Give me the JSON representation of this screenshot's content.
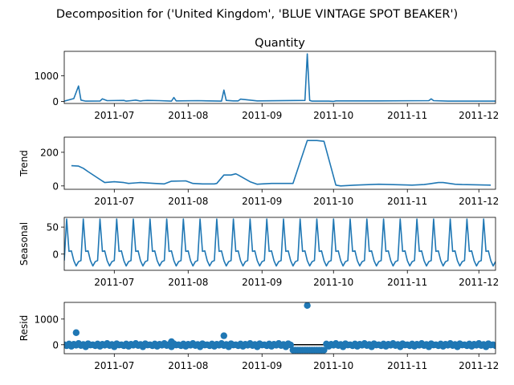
{
  "figure": {
    "suptitle": "Decomposition for ('United Kingdom', 'BLUE VINTAGE SPOT BEAKER')",
    "line_color": "#1f77b4"
  },
  "chart_data": [
    {
      "type": "line",
      "title": "Quantity",
      "ylabel": "",
      "ylim": [
        -80,
        1950
      ],
      "yticks": [
        0,
        1000
      ],
      "x_range": [
        "2011-06-10",
        "2011-12-08"
      ],
      "x_ticks": [
        "2011-07",
        "2011-08",
        "2011-09",
        "2011-10",
        "2011-11",
        "2011-12"
      ],
      "x_tick_dates": [
        "2011-07-01",
        "2011-08-01",
        "2011-09-01",
        "2011-10-01",
        "2011-11-01",
        "2011-12-01"
      ],
      "x": [
        "2011-06-10",
        "2011-06-14",
        "2011-06-16",
        "2011-06-17",
        "2011-06-19",
        "2011-06-25",
        "2011-06-26",
        "2011-06-28",
        "2011-07-05",
        "2011-07-06",
        "2011-07-08",
        "2011-07-10",
        "2011-07-12",
        "2011-07-13",
        "2011-07-15",
        "2011-07-20",
        "2011-07-25",
        "2011-07-26",
        "2011-07-27",
        "2011-08-05",
        "2011-08-15",
        "2011-08-16",
        "2011-08-17",
        "2011-08-20",
        "2011-08-22",
        "2011-08-23",
        "2011-08-30",
        "2011-09-19",
        "2011-09-20",
        "2011-09-21",
        "2011-09-22",
        "2011-09-29",
        "2011-10-01",
        "2011-10-02",
        "2011-10-20",
        "2011-11-10",
        "2011-11-11",
        "2011-11-12",
        "2011-11-18",
        "2011-12-08"
      ],
      "values": [
        10,
        110,
        600,
        50,
        10,
        15,
        100,
        30,
        40,
        10,
        30,
        50,
        15,
        30,
        40,
        30,
        10,
        150,
        20,
        30,
        10,
        440,
        40,
        20,
        20,
        90,
        20,
        40,
        1850,
        40,
        10,
        10,
        0,
        20,
        20,
        30,
        100,
        30,
        10,
        10
      ]
    },
    {
      "type": "line",
      "title": "",
      "ylabel": "Trend",
      "ylim": [
        -20,
        290
      ],
      "yticks": [
        0,
        200
      ],
      "x_range": [
        "2011-06-10",
        "2011-12-08"
      ],
      "x_ticks": [
        "2011-07",
        "2011-08",
        "2011-09",
        "2011-10",
        "2011-11",
        "2011-12"
      ],
      "x_tick_dates": [
        "2011-07-01",
        "2011-08-01",
        "2011-09-01",
        "2011-10-01",
        "2011-11-01",
        "2011-12-01"
      ],
      "x": [
        "2011-06-13",
        "2011-06-16",
        "2011-06-18",
        "2011-06-20",
        "2011-06-27",
        "2011-07-01",
        "2011-07-05",
        "2011-07-07",
        "2011-07-10",
        "2011-07-12",
        "2011-07-18",
        "2011-07-22",
        "2011-07-25",
        "2011-07-31",
        "2011-08-03",
        "2011-08-07",
        "2011-08-12",
        "2011-08-13",
        "2011-08-16",
        "2011-08-19",
        "2011-08-21",
        "2011-08-22",
        "2011-08-27",
        "2011-08-30",
        "2011-09-01",
        "2011-09-05",
        "2011-09-13",
        "2011-09-14",
        "2011-09-20",
        "2011-09-23",
        "2011-09-24",
        "2011-09-27",
        "2011-10-02",
        "2011-10-04",
        "2011-10-10",
        "2011-10-20",
        "2011-11-03",
        "2011-11-08",
        "2011-11-10",
        "2011-11-14",
        "2011-11-16",
        "2011-11-21",
        "2011-11-24",
        "2011-12-06"
      ],
      "values": [
        120,
        118,
        105,
        85,
        20,
        25,
        20,
        15,
        18,
        20,
        15,
        12,
        28,
        30,
        15,
        12,
        12,
        15,
        65,
        65,
        72,
        65,
        25,
        10,
        12,
        15,
        15,
        15,
        270,
        270,
        270,
        265,
        5,
        0,
        5,
        10,
        5,
        8,
        12,
        20,
        20,
        10,
        8,
        5
      ]
    },
    {
      "type": "line",
      "title": "",
      "ylabel": "Seasonal",
      "ylim": [
        -30,
        68
      ],
      "yticks": [
        0,
        50
      ],
      "x_range": [
        "2011-06-10",
        "2011-12-08"
      ],
      "x_ticks": [
        "2011-07",
        "2011-08",
        "2011-09",
        "2011-10",
        "2011-11",
        "2011-12"
      ],
      "x_tick_dates": [
        "2011-07-01",
        "2011-08-01",
        "2011-09-01",
        "2011-10-01",
        "2011-11-01",
        "2011-12-01"
      ],
      "start": "2011-06-10",
      "end": "2011-12-08",
      "period_days": 7,
      "pattern": [
        -12,
        65,
        5,
        6,
        -12,
        -22,
        -14
      ]
    },
    {
      "type": "scatter",
      "title": "",
      "ylabel": "Resid",
      "ylim": [
        -350,
        1650
      ],
      "yticks": [
        0,
        1000
      ],
      "x_range": [
        "2011-06-10",
        "2011-12-08"
      ],
      "x_ticks": [
        "2011-07",
        "2011-08",
        "2011-09",
        "2011-10",
        "2011-11",
        "2011-12"
      ],
      "x_tick_dates": [
        "2011-07-01",
        "2011-08-01",
        "2011-09-01",
        "2011-10-01",
        "2011-11-01",
        "2011-12-01"
      ],
      "zero_line": true,
      "start": "2011-06-10",
      "end": "2011-12-08",
      "pattern": [
        0,
        -40,
        30,
        -60,
        20,
        -20,
        50,
        -30,
        10,
        -80,
        40,
        -10
      ],
      "outliers": [
        {
          "x": "2011-06-15",
          "value": 470
        },
        {
          "x": "2011-07-25",
          "value": 120
        },
        {
          "x": "2011-08-16",
          "value": 350
        },
        {
          "x": "2011-09-20",
          "value": 1530
        }
      ],
      "low_segment": {
        "from": "2011-09-14",
        "to": "2011-09-27",
        "value": -210
      }
    }
  ]
}
